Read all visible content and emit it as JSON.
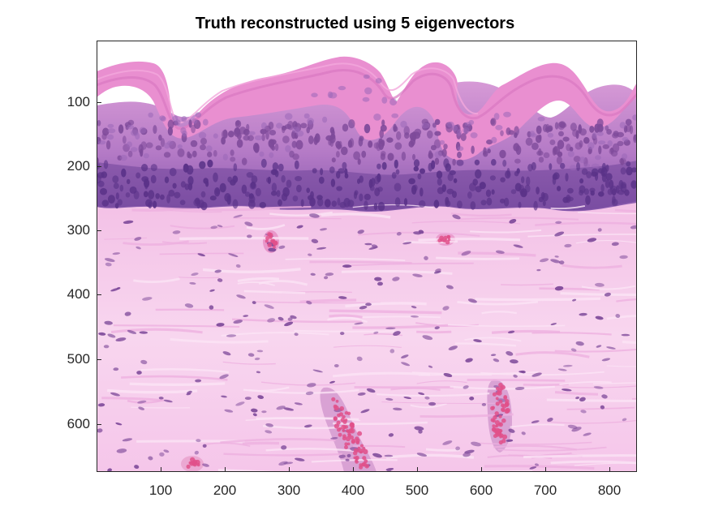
{
  "figure": {
    "title": "Truth reconstructed using 5 eigenvectors",
    "x_ticks": [
      "100",
      "200",
      "300",
      "400",
      "500",
      "600",
      "700",
      "800"
    ],
    "y_ticks": [
      "100",
      "200",
      "300",
      "400",
      "500",
      "600"
    ]
  },
  "image": {
    "subject": "H&E stained skin tissue section",
    "colors": {
      "background": "#ffffff",
      "keratin": "#e88fd0",
      "epidermis": "#c07ac8",
      "basal_layer": "#6a3f9a",
      "dermis": "#f6cbeb",
      "collagen_fiber": "#eeb0e0",
      "nuclei": "#7e4a9a",
      "red_blood_cells": "#e0508a"
    }
  }
}
